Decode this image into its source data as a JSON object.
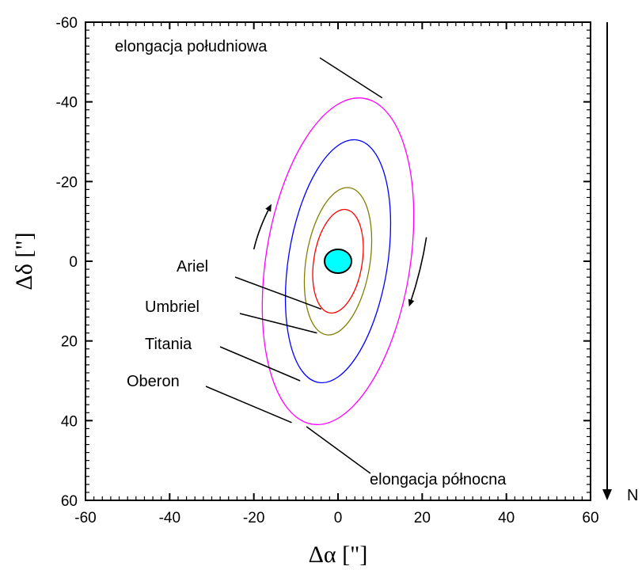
{
  "chart_data": {
    "type": "line",
    "title": "",
    "xlabel": "Δα [\"]",
    "ylabel": "Δδ [\"]",
    "xlim": [
      -60,
      60
    ],
    "ylim": [
      -60,
      60
    ],
    "y_inverted": true,
    "xticks": [
      -60,
      -40,
      -20,
      0,
      20,
      40,
      60
    ],
    "yticks": [
      -60,
      -40,
      -20,
      0,
      20,
      40,
      60
    ],
    "grid": false,
    "series": [
      {
        "name": "Ariel",
        "color": "#ff0000",
        "ellipse": {
          "cx": 0,
          "cy": 0,
          "x_half_extent": 6,
          "y_half_extent": 13
        },
        "label_anchor": [
          -4,
          12
        ]
      },
      {
        "name": "Umbriel",
        "color": "#808000",
        "ellipse": {
          "cx": 0,
          "cy": 0,
          "x_half_extent": 8,
          "y_half_extent": 18.5
        },
        "label_anchor": [
          -5,
          18
        ]
      },
      {
        "name": "Titania",
        "color": "#0000ff",
        "ellipse": {
          "cx": 0,
          "cy": 0,
          "x_half_extent": 12.5,
          "y_half_extent": 30.5
        },
        "label_anchor": [
          -9,
          30
        ]
      },
      {
        "name": "Oberon",
        "color": "#ff00ff",
        "ellipse": {
          "cx": 0,
          "cy": 0,
          "x_half_extent": 18,
          "y_half_extent": 41
        },
        "label_anchor": [
          -11,
          40.5
        ]
      }
    ],
    "planet": {
      "color": "#00ffff",
      "x": 0,
      "y": 0,
      "radius": 3.2
    },
    "annotations": [
      {
        "text": "elongacja południowa",
        "point": [
          10.5,
          -41
        ]
      },
      {
        "text": "elongacja północna",
        "point": [
          -7.5,
          41.5
        ]
      }
    ],
    "motion_arrows": [
      {
        "from": [
          -20,
          -3
        ],
        "to": [
          -16,
          -14
        ]
      },
      {
        "from": [
          21,
          -6
        ],
        "to": [
          17,
          11
        ]
      }
    ],
    "compass": {
      "label": "N"
    }
  }
}
